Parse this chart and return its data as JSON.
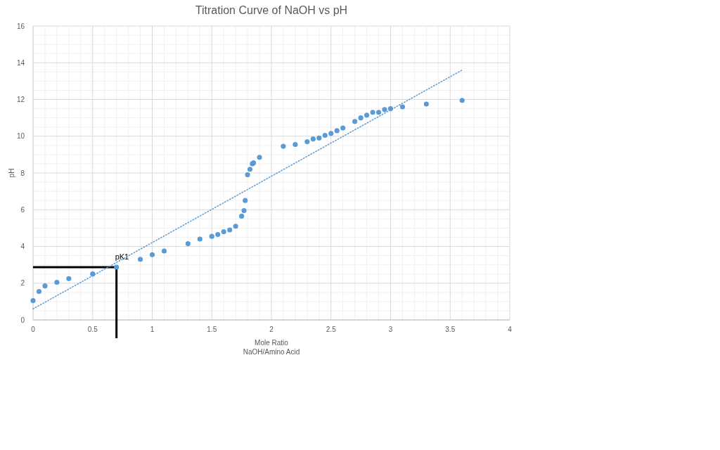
{
  "chart_data": {
    "type": "scatter",
    "title": "Titration Curve of NaOH vs pH",
    "xlabel": "Mole Ratio\nNaOH/Amino Acid",
    "ylabel": "pH",
    "xlim": [
      0,
      4
    ],
    "xticks": [
      0,
      0.5,
      1,
      1.5,
      2,
      2.5,
      3,
      3.5,
      4
    ],
    "ylim": [
      0,
      16
    ],
    "yticks": [
      0,
      2,
      4,
      6,
      8,
      10,
      12,
      14,
      16
    ],
    "grid": true,
    "marker": "circle",
    "series": [
      {
        "color": "#5b9bd5",
        "x": [
          0,
          0.05,
          0.1,
          0.2,
          0.3,
          0.5,
          0.7,
          0.9,
          1,
          1.1,
          1.3,
          1.4,
          1.5,
          1.55,
          1.6,
          1.65,
          1.7,
          1.75,
          1.77,
          1.78,
          1.8,
          1.82,
          1.84,
          1.85,
          1.9,
          2.1,
          2.2,
          2.3,
          2.35,
          2.4,
          2.45,
          2.5,
          2.55,
          2.6,
          2.7,
          2.75,
          2.8,
          2.85,
          2.9,
          2.95,
          3,
          3.1,
          3.3,
          3.6
        ],
        "values": [
          1.05,
          1.55,
          1.85,
          2.05,
          2.25,
          2.5,
          2.87,
          3.3,
          3.55,
          3.75,
          4.15,
          4.4,
          4.55,
          4.65,
          4.8,
          4.9,
          5.1,
          5.65,
          5.95,
          6.5,
          7.9,
          8.2,
          8.5,
          8.55,
          8.85,
          9.45,
          9.55,
          9.7,
          9.85,
          9.9,
          10.05,
          10.15,
          10.3,
          10.45,
          10.8,
          11,
          11.15,
          11.3,
          11.3,
          11.45,
          11.5,
          11.6,
          11.75,
          11.95
        ]
      },
      {
        "type": "line",
        "color": "#5b9bd5",
        "line_style": "dotted",
        "marker": "none",
        "x": [
          0,
          3.6
        ],
        "values": [
          0.6,
          13.6
        ]
      }
    ],
    "annotations": [
      {
        "text": "pK1",
        "x": 0.7,
        "y": 2.87
      }
    ]
  }
}
